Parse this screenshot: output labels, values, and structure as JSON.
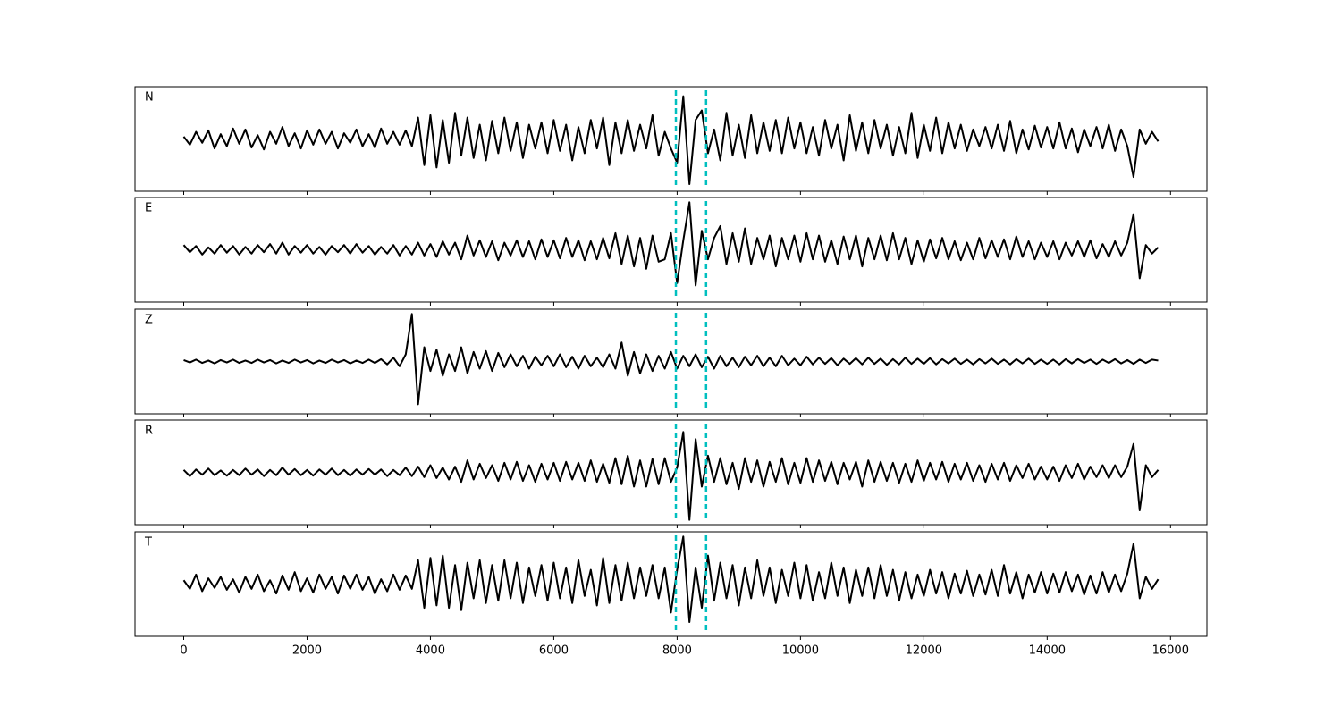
{
  "chart_data": {
    "type": "line",
    "xlim": [
      -790,
      16590
    ],
    "xticks": [
      0,
      2000,
      4000,
      6000,
      8000,
      10000,
      12000,
      14000,
      16000
    ],
    "ylim": [
      -1.1,
      1.1
    ],
    "line_color": "#000000",
    "markers": [
      7980,
      8470
    ],
    "marker_color": "#00bfbf",
    "x": [
      0,
      100,
      200,
      300,
      400,
      500,
      600,
      700,
      800,
      900,
      1000,
      1100,
      1200,
      1300,
      1400,
      1500,
      1600,
      1700,
      1800,
      1900,
      2000,
      2100,
      2200,
      2300,
      2400,
      2500,
      2600,
      2700,
      2800,
      2900,
      3000,
      3100,
      3200,
      3300,
      3400,
      3500,
      3600,
      3700,
      3800,
      3900,
      4000,
      4100,
      4200,
      4300,
      4400,
      4500,
      4600,
      4700,
      4800,
      4900,
      5000,
      5100,
      5200,
      5300,
      5400,
      5500,
      5600,
      5700,
      5800,
      5900,
      6000,
      6100,
      6200,
      6300,
      6400,
      6500,
      6600,
      6700,
      6800,
      6900,
      7000,
      7100,
      7200,
      7300,
      7400,
      7500,
      7600,
      7700,
      7800,
      7900,
      8000,
      8100,
      8200,
      8300,
      8400,
      8500,
      8600,
      8700,
      8800,
      8900,
      9000,
      9100,
      9200,
      9300,
      9400,
      9500,
      9600,
      9700,
      9800,
      9900,
      10000,
      10100,
      10200,
      10300,
      10400,
      10500,
      10600,
      10700,
      10800,
      10900,
      11000,
      11100,
      11200,
      11300,
      11400,
      11500,
      11600,
      11700,
      11800,
      11900,
      12000,
      12100,
      12200,
      12300,
      12400,
      12500,
      12600,
      12700,
      12800,
      12900,
      13000,
      13100,
      13200,
      13300,
      13400,
      13500,
      13600,
      13700,
      13800,
      13900,
      14000,
      14100,
      14200,
      14300,
      14400,
      14500,
      14600,
      14700,
      14800,
      14900,
      15000,
      15100,
      15200,
      15300,
      15400,
      15500,
      15600,
      15700,
      15800
    ],
    "panels": [
      {
        "label": "N",
        "values": [
          0.05,
          -0.12,
          0.15,
          -0.08,
          0.18,
          -0.2,
          0.1,
          -0.15,
          0.22,
          -0.1,
          0.2,
          -0.18,
          0.08,
          -0.22,
          0.15,
          -0.1,
          0.25,
          -0.15,
          0.12,
          -0.2,
          0.18,
          -0.12,
          0.2,
          -0.1,
          0.15,
          -0.2,
          0.12,
          -0.08,
          0.2,
          -0.15,
          0.1,
          -0.18,
          0.22,
          -0.1,
          0.15,
          -0.12,
          0.18,
          -0.15,
          0.45,
          -0.55,
          0.5,
          -0.6,
          0.4,
          -0.5,
          0.55,
          -0.35,
          0.45,
          -0.4,
          0.3,
          -0.45,
          0.38,
          -0.3,
          0.45,
          -0.25,
          0.35,
          -0.4,
          0.3,
          -0.2,
          0.35,
          -0.3,
          0.4,
          -0.25,
          0.3,
          -0.45,
          0.25,
          -0.3,
          0.4,
          -0.2,
          0.45,
          -0.55,
          0.35,
          -0.3,
          0.4,
          -0.25,
          0.3,
          -0.2,
          0.5,
          -0.35,
          0.15,
          -0.2,
          -0.5,
          0.9,
          -0.95,
          0.4,
          0.6,
          -0.3,
          0.2,
          -0.45,
          0.55,
          -0.35,
          0.3,
          -0.4,
          0.5,
          -0.3,
          0.35,
          -0.25,
          0.4,
          -0.3,
          0.45,
          -0.2,
          0.35,
          -0.3,
          0.25,
          -0.35,
          0.4,
          -0.2,
          0.3,
          -0.45,
          0.5,
          -0.25,
          0.35,
          -0.3,
          0.4,
          -0.2,
          0.3,
          -0.35,
          0.25,
          -0.3,
          0.55,
          -0.4,
          0.3,
          -0.25,
          0.45,
          -0.3,
          0.35,
          -0.2,
          0.3,
          -0.25,
          0.2,
          -0.15,
          0.25,
          -0.2,
          0.3,
          -0.25,
          0.38,
          -0.3,
          0.2,
          -0.22,
          0.28,
          -0.18,
          0.25,
          -0.2,
          0.35,
          -0.2,
          0.22,
          -0.28,
          0.2,
          -0.15,
          0.25,
          -0.2,
          0.3,
          -0.25,
          0.2,
          -0.15,
          -0.8,
          0.2,
          -0.1,
          0.15,
          -0.05
        ]
      },
      {
        "label": "E",
        "values": [
          0.1,
          -0.05,
          0.08,
          -0.1,
          0.05,
          -0.08,
          0.1,
          -0.06,
          0.08,
          -0.1,
          0.06,
          -0.08,
          0.1,
          -0.05,
          0.12,
          -0.08,
          0.15,
          -0.1,
          0.08,
          -0.06,
          0.1,
          -0.08,
          0.06,
          -0.1,
          0.08,
          -0.05,
          0.1,
          -0.08,
          0.12,
          -0.06,
          0.08,
          -0.1,
          0.06,
          -0.08,
          0.1,
          -0.12,
          0.08,
          -0.1,
          0.15,
          -0.12,
          0.12,
          -0.15,
          0.18,
          -0.1,
          0.15,
          -0.2,
          0.3,
          -0.12,
          0.2,
          -0.15,
          0.18,
          -0.22,
          0.15,
          -0.12,
          0.2,
          -0.15,
          0.18,
          -0.2,
          0.22,
          -0.15,
          0.2,
          -0.18,
          0.25,
          -0.15,
          0.2,
          -0.22,
          0.18,
          -0.2,
          0.25,
          -0.18,
          0.35,
          -0.3,
          0.3,
          -0.35,
          0.25,
          -0.4,
          0.3,
          -0.25,
          -0.2,
          0.35,
          -0.7,
          0.2,
          1.0,
          -0.75,
          0.4,
          -0.2,
          0.25,
          0.5,
          -0.3,
          0.35,
          -0.25,
          0.45,
          -0.3,
          0.25,
          -0.2,
          0.3,
          -0.35,
          0.25,
          -0.2,
          0.3,
          -0.25,
          0.35,
          -0.2,
          0.3,
          -0.25,
          0.2,
          -0.3,
          0.28,
          -0.2,
          0.3,
          -0.35,
          0.25,
          -0.2,
          0.3,
          -0.22,
          0.35,
          -0.2,
          0.25,
          -0.3,
          0.2,
          -0.25,
          0.22,
          -0.18,
          0.25,
          -0.2,
          0.18,
          -0.22,
          0.15,
          -0.2,
          0.25,
          -0.18,
          0.2,
          -0.15,
          0.22,
          -0.2,
          0.28,
          -0.15,
          0.18,
          -0.2,
          0.15,
          -0.15,
          0.18,
          -0.2,
          0.15,
          -0.12,
          0.18,
          -0.15,
          0.2,
          -0.18,
          0.12,
          -0.15,
          0.18,
          -0.12,
          0.15,
          0.75,
          -0.6,
          0.1,
          -0.08,
          0.05
        ]
      },
      {
        "label": "Z",
        "values": [
          0.03,
          -0.02,
          0.04,
          -0.03,
          0.02,
          -0.04,
          0.03,
          -0.02,
          0.04,
          -0.03,
          0.02,
          -0.03,
          0.04,
          -0.02,
          0.03,
          -0.04,
          0.02,
          -0.03,
          0.04,
          -0.02,
          0.03,
          -0.04,
          0.02,
          -0.03,
          0.04,
          -0.02,
          0.03,
          -0.04,
          0.02,
          -0.03,
          0.04,
          -0.03,
          0.05,
          -0.06,
          0.08,
          -0.1,
          0.15,
          1.0,
          -0.9,
          0.3,
          -0.2,
          0.25,
          -0.3,
          0.15,
          -0.2,
          0.3,
          -0.25,
          0.2,
          -0.15,
          0.22,
          -0.2,
          0.18,
          -0.12,
          0.15,
          -0.1,
          0.12,
          -0.15,
          0.1,
          -0.08,
          0.12,
          -0.1,
          0.15,
          -0.12,
          0.1,
          -0.15,
          0.12,
          -0.1,
          0.08,
          -0.12,
          0.15,
          -0.15,
          0.4,
          -0.3,
          0.2,
          -0.25,
          0.15,
          -0.2,
          0.12,
          -0.15,
          0.2,
          -0.15,
          0.12,
          -0.1,
          0.15,
          -0.12,
          0.1,
          -0.15,
          0.12,
          -0.1,
          0.08,
          -0.12,
          0.1,
          -0.08,
          0.12,
          -0.1,
          0.08,
          -0.1,
          0.12,
          -0.08,
          0.06,
          -0.08,
          0.1,
          -0.06,
          0.08,
          -0.05,
          0.07,
          -0.08,
          0.06,
          -0.05,
          0.07,
          -0.06,
          0.08,
          -0.05,
          0.06,
          -0.07,
          0.05,
          -0.06,
          0.08,
          -0.05,
          0.06,
          -0.05,
          0.07,
          -0.06,
          0.05,
          -0.04,
          0.06,
          -0.05,
          0.04,
          -0.06,
          0.05,
          -0.04,
          0.06,
          -0.05,
          0.04,
          -0.06,
          0.05,
          -0.04,
          0.06,
          -0.05,
          0.04,
          -0.05,
          0.04,
          -0.06,
          0.05,
          -0.04,
          0.05,
          -0.03,
          0.04,
          -0.05,
          0.04,
          -0.03,
          0.05,
          -0.04,
          0.03,
          -0.05,
          0.04,
          -0.03,
          0.04,
          0.02
        ]
      },
      {
        "label": "R",
        "values": [
          0.05,
          -0.08,
          0.06,
          -0.05,
          0.08,
          -0.06,
          0.04,
          -0.07,
          0.05,
          -0.06,
          0.08,
          -0.05,
          0.06,
          -0.08,
          0.05,
          -0.06,
          0.1,
          -0.05,
          0.07,
          -0.06,
          0.05,
          -0.07,
          0.06,
          -0.05,
          0.08,
          -0.06,
          0.05,
          -0.07,
          0.06,
          -0.05,
          0.07,
          -0.05,
          0.06,
          -0.08,
          0.05,
          -0.06,
          0.1,
          -0.08,
          0.12,
          -0.1,
          0.15,
          -0.12,
          0.1,
          -0.15,
          0.12,
          -0.2,
          0.25,
          -0.15,
          0.18,
          -0.12,
          0.15,
          -0.18,
          0.2,
          -0.15,
          0.22,
          -0.18,
          0.15,
          -0.2,
          0.18,
          -0.15,
          0.2,
          -0.18,
          0.22,
          -0.15,
          0.2,
          -0.18,
          0.25,
          -0.2,
          0.18,
          -0.22,
          0.3,
          -0.25,
          0.35,
          -0.3,
          0.25,
          -0.3,
          0.28,
          -0.25,
          0.3,
          -0.2,
          0.1,
          0.85,
          -1.0,
          0.7,
          -0.3,
          0.35,
          -0.2,
          0.3,
          -0.25,
          0.2,
          -0.35,
          0.3,
          -0.2,
          0.25,
          -0.3,
          0.22,
          -0.2,
          0.3,
          -0.25,
          0.2,
          -0.22,
          0.3,
          -0.2,
          0.25,
          -0.18,
          0.22,
          -0.25,
          0.2,
          -0.15,
          0.22,
          -0.3,
          0.25,
          -0.2,
          0.22,
          -0.18,
          0.2,
          -0.22,
          0.18,
          -0.2,
          0.25,
          -0.18,
          0.2,
          -0.15,
          0.22,
          -0.2,
          0.18,
          -0.15,
          0.2,
          -0.18,
          0.15,
          -0.2,
          0.18,
          -0.15,
          0.2,
          -0.18,
          0.15,
          -0.12,
          0.18,
          -0.15,
          0.12,
          -0.15,
          0.12,
          -0.18,
          0.15,
          -0.12,
          0.18,
          -0.15,
          0.12,
          -0.1,
          0.15,
          -0.12,
          0.15,
          -0.1,
          0.12,
          0.6,
          -0.8,
          0.15,
          -0.1,
          0.05
        ]
      },
      {
        "label": "T",
        "values": [
          0.08,
          -0.1,
          0.2,
          -0.15,
          0.12,
          -0.08,
          0.15,
          -0.12,
          0.1,
          -0.18,
          0.15,
          -0.1,
          0.2,
          -0.15,
          0.08,
          -0.2,
          0.18,
          -0.12,
          0.25,
          -0.15,
          0.12,
          -0.18,
          0.2,
          -0.1,
          0.15,
          -0.2,
          0.18,
          -0.1,
          0.2,
          -0.12,
          0.15,
          -0.2,
          0.1,
          -0.15,
          0.2,
          -0.12,
          0.18,
          -0.1,
          0.5,
          -0.5,
          0.55,
          -0.45,
          0.6,
          -0.5,
          0.4,
          -0.55,
          0.45,
          -0.3,
          0.5,
          -0.4,
          0.4,
          -0.35,
          0.5,
          -0.3,
          0.45,
          -0.4,
          0.35,
          -0.25,
          0.4,
          -0.35,
          0.45,
          -0.3,
          0.35,
          -0.4,
          0.5,
          -0.25,
          0.3,
          -0.45,
          0.55,
          -0.4,
          0.4,
          -0.35,
          0.45,
          -0.3,
          0.35,
          -0.25,
          0.4,
          -0.3,
          0.35,
          -0.6,
          0.3,
          1.0,
          -0.8,
          0.35,
          -0.5,
          0.6,
          -0.35,
          0.45,
          -0.3,
          0.4,
          -0.45,
          0.35,
          -0.3,
          0.5,
          -0.25,
          0.35,
          -0.4,
          0.3,
          -0.25,
          0.45,
          -0.3,
          0.4,
          -0.35,
          0.25,
          -0.3,
          0.45,
          -0.25,
          0.35,
          -0.4,
          0.3,
          -0.25,
          0.35,
          -0.3,
          0.4,
          -0.25,
          0.3,
          -0.35,
          0.25,
          -0.3,
          0.2,
          -0.25,
          0.3,
          -0.2,
          0.25,
          -0.3,
          0.22,
          -0.2,
          0.28,
          -0.25,
          0.2,
          -0.22,
          0.3,
          -0.25,
          0.4,
          -0.2,
          0.25,
          -0.3,
          0.2,
          -0.18,
          0.25,
          -0.2,
          0.22,
          -0.18,
          0.25,
          -0.15,
          0.2,
          -0.22,
          0.18,
          -0.2,
          0.25,
          -0.18,
          0.2,
          -0.15,
          0.22,
          0.85,
          -0.3,
          0.15,
          -0.1,
          0.1
        ]
      }
    ]
  }
}
